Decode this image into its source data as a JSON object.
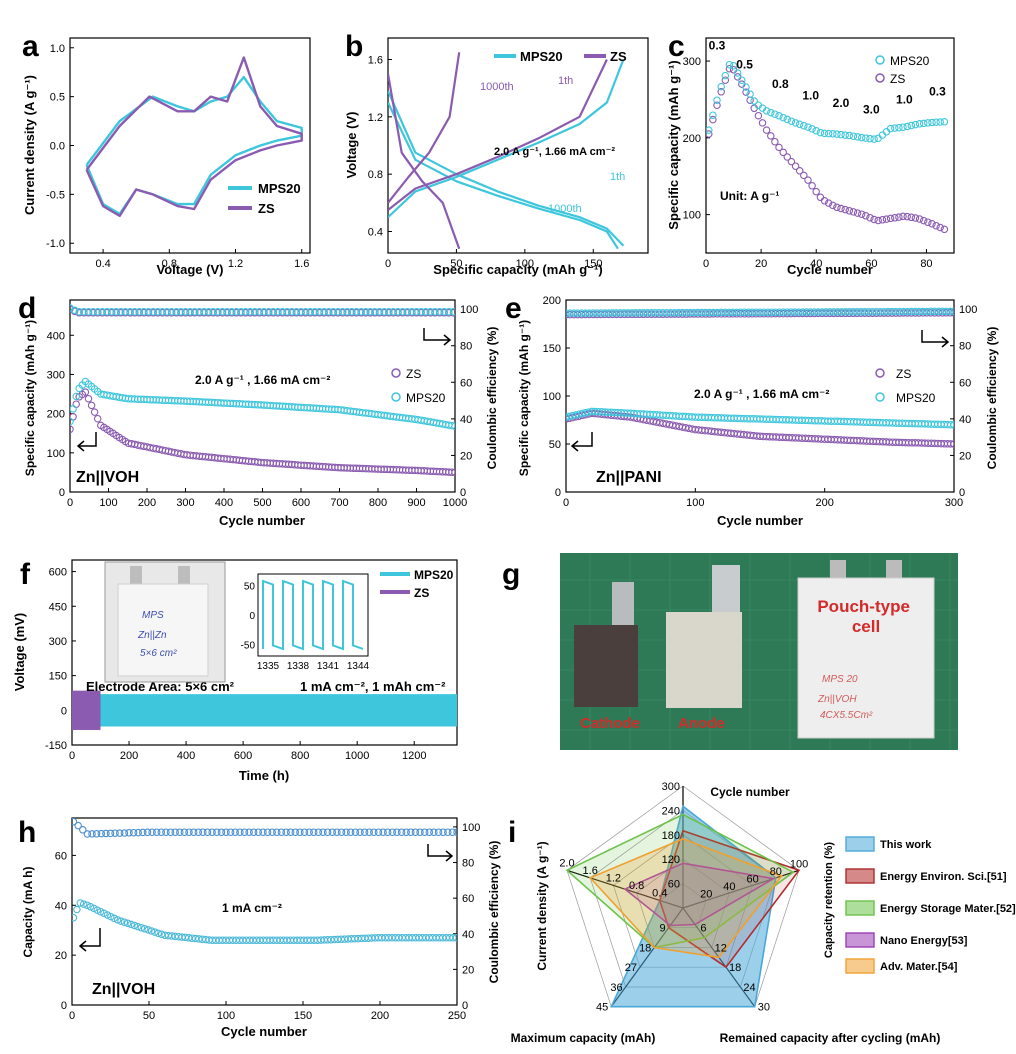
{
  "colors": {
    "mps": "#3ec6dc",
    "zs": "#8a5bb0",
    "zs_dark": "#7a4f9a",
    "photo_bg": "#2e7a56",
    "red": "#d42a2a"
  },
  "panels": {
    "a": "a",
    "b": "b",
    "c": "c",
    "d": "d",
    "e": "e",
    "f": "f",
    "g": "g",
    "h": "h",
    "i": "i"
  },
  "chart_data": [
    {
      "id": "a",
      "type": "line",
      "xlabel": "Voltage (V)",
      "ylabel": "Current density (A g⁻¹)",
      "xlim": [
        0.2,
        1.65
      ],
      "ylim": [
        -1.1,
        1.1
      ],
      "xticks": [
        "0.4",
        "0.8",
        "1.2",
        "1.6"
      ],
      "yticks": [
        "-1.0",
        "-0.5",
        "0.0",
        "0.5",
        "1.0"
      ],
      "legend": [
        "MPS20",
        "ZS"
      ],
      "series": [
        {
          "name": "MPS20",
          "x": [
            0.3,
            0.5,
            0.7,
            0.85,
            0.95,
            1.05,
            1.15,
            1.25,
            1.35,
            1.45,
            1.6,
            1.6,
            1.45,
            1.35,
            1.2,
            1.05,
            0.95,
            0.85,
            0.7,
            0.6,
            0.5,
            0.4,
            0.3
          ],
          "y": [
            -0.2,
            0.25,
            0.5,
            0.4,
            0.35,
            0.45,
            0.5,
            0.7,
            0.45,
            0.25,
            0.18,
            0.1,
            0.05,
            0.0,
            -0.1,
            -0.3,
            -0.6,
            -0.6,
            -0.5,
            -0.45,
            -0.7,
            -0.6,
            -0.2
          ]
        },
        {
          "name": "ZS",
          "x": [
            0.3,
            0.5,
            0.68,
            0.85,
            0.95,
            1.05,
            1.15,
            1.25,
            1.35,
            1.45,
            1.6,
            1.6,
            1.45,
            1.35,
            1.2,
            1.05,
            0.95,
            0.85,
            0.7,
            0.6,
            0.5,
            0.4,
            0.3
          ],
          "y": [
            -0.25,
            0.2,
            0.5,
            0.35,
            0.35,
            0.5,
            0.45,
            0.9,
            0.4,
            0.2,
            0.12,
            0.05,
            0.0,
            -0.05,
            -0.15,
            -0.35,
            -0.65,
            -0.62,
            -0.5,
            -0.45,
            -0.72,
            -0.62,
            -0.25
          ]
        }
      ]
    },
    {
      "id": "b",
      "type": "line",
      "xlabel": "Specific capacity (mAh g⁻¹)",
      "ylabel": "Voltage (V)",
      "xlim": [
        0,
        190
      ],
      "ylim": [
        0.25,
        1.75
      ],
      "xticks": [
        "0",
        "50",
        "100",
        "150"
      ],
      "yticks": [
        "0.4",
        "0.8",
        "1.2",
        "1.6"
      ],
      "legend": [
        "MPS20",
        "ZS"
      ],
      "annotations": [
        "1000th",
        "1th",
        "2.0 A g⁻¹, 1.66 mA cm⁻²",
        "1th",
        "1000th"
      ],
      "series": [
        {
          "name": "MPS20 1th",
          "x": [
            0,
            20,
            50,
            80,
            110,
            140,
            160,
            172
          ],
          "y": [
            1.38,
            0.95,
            0.8,
            0.68,
            0.58,
            0.5,
            0.42,
            0.3
          ]
        },
        {
          "name": "MPS20 1000th",
          "x": [
            0,
            20,
            50,
            80,
            110,
            140,
            160,
            168
          ],
          "y": [
            1.3,
            0.9,
            0.75,
            0.65,
            0.56,
            0.48,
            0.4,
            0.28
          ]
        },
        {
          "name": "MPS20 charge",
          "x": [
            0,
            20,
            50,
            80,
            110,
            140,
            160,
            172
          ],
          "y": [
            0.5,
            0.68,
            0.78,
            0.9,
            1.02,
            1.15,
            1.3,
            1.6
          ]
        },
        {
          "name": "ZS 1th",
          "x": [
            0,
            20,
            50,
            80,
            110,
            140,
            160
          ],
          "y": [
            0.55,
            0.7,
            0.8,
            0.92,
            1.05,
            1.2,
            1.6
          ]
        },
        {
          "name": "ZS 1000th charge",
          "x": [
            0,
            15,
            30,
            45,
            52
          ],
          "y": [
            0.6,
            0.78,
            0.95,
            1.2,
            1.65
          ]
        },
        {
          "name": "ZS 1000th discharge",
          "x": [
            0,
            10,
            25,
            40,
            52
          ],
          "y": [
            1.5,
            0.95,
            0.75,
            0.6,
            0.28
          ]
        }
      ]
    },
    {
      "id": "c",
      "type": "scatter",
      "xlabel": "Cycle number",
      "ylabel": "Specific capacity (mAh g⁻¹)",
      "xlim": [
        0,
        90
      ],
      "ylim": [
        50,
        330
      ],
      "xticks": [
        "0",
        "20",
        "40",
        "60",
        "80"
      ],
      "yticks": [
        "100",
        "200",
        "300"
      ],
      "legend": [
        "MPS20",
        "ZS"
      ],
      "unit_label": "Unit: A g⁻¹",
      "rate_labels": [
        "0.3",
        "0.5",
        "0.8",
        "1.0",
        "2.0",
        "3.0",
        "1.0",
        "0.3"
      ],
      "series": [
        {
          "name": "MPS20",
          "x": [
            1,
            5,
            9,
            13,
            18,
            22,
            27,
            32,
            37,
            42,
            47,
            52,
            57,
            62,
            67,
            72,
            77,
            82,
            87
          ],
          "y": [
            210,
            262,
            300,
            275,
            245,
            235,
            228,
            220,
            214,
            206,
            205,
            203,
            200,
            198,
            212,
            214,
            218,
            220,
            221
          ]
        },
        {
          "name": "ZS",
          "x": [
            1,
            5,
            9,
            13,
            18,
            22,
            27,
            32,
            37,
            42,
            47,
            52,
            57,
            62,
            67,
            72,
            77,
            82,
            87
          ],
          "y": [
            205,
            255,
            295,
            270,
            235,
            210,
            185,
            165,
            145,
            120,
            110,
            105,
            100,
            92,
            95,
            98,
            95,
            88,
            80
          ]
        }
      ]
    },
    {
      "id": "d",
      "type": "scatter",
      "xlabel": "Cycle number",
      "ylabel": "Specific capacity (mAh g⁻¹)",
      "y2label": "Coulombic efficiency (%)",
      "xlim": [
        0,
        1000
      ],
      "ylim": [
        0,
        490
      ],
      "y2lim": [
        0,
        105
      ],
      "xticks": [
        "0",
        "100",
        "200",
        "300",
        "400",
        "500",
        "600",
        "700",
        "800",
        "900",
        "1000"
      ],
      "yticks": [
        "0",
        "100",
        "200",
        "300",
        "400"
      ],
      "y2ticks": [
        "0",
        "20",
        "40",
        "60",
        "80",
        "100"
      ],
      "legend": [
        "ZS",
        "MPS20"
      ],
      "condition": "2.0 A g⁻¹ , 1.66 mA cm⁻²",
      "cell_label": "Zn||VOH",
      "series": [
        {
          "name": "MPS20",
          "x": [
            0,
            20,
            40,
            80,
            150,
            300,
            500,
            700,
            900,
            1000
          ],
          "y": [
            180,
            260,
            282,
            250,
            238,
            232,
            222,
            210,
            185,
            168
          ]
        },
        {
          "name": "ZS",
          "x": [
            0,
            20,
            40,
            80,
            150,
            300,
            500,
            700,
            900,
            1000
          ],
          "y": [
            160,
            240,
            255,
            170,
            125,
            95,
            75,
            62,
            55,
            50
          ]
        },
        {
          "name": "CE",
          "x": [
            0,
            20,
            100,
            500,
            1000
          ],
          "y": [
            100,
            98,
            98,
            98,
            98
          ]
        }
      ]
    },
    {
      "id": "e",
      "type": "scatter",
      "xlabel": "Cycle number",
      "ylabel": "Specific capacity (mAh g⁻¹)",
      "y2label": "Coulombic efficiency (%)",
      "xlim": [
        0,
        300
      ],
      "ylim": [
        0,
        200
      ],
      "y2lim": [
        0,
        105
      ],
      "xticks": [
        "0",
        "100",
        "200",
        "300"
      ],
      "yticks": [
        "0",
        "50",
        "100",
        "150",
        "200"
      ],
      "y2ticks": [
        "0",
        "20",
        "40",
        "60",
        "80",
        "100"
      ],
      "legend": [
        "ZS",
        "MPS20"
      ],
      "condition": "2.0 A g⁻¹ , 1.66 mA cm⁻²",
      "cell_label": "Zn||PANI",
      "series": [
        {
          "name": "MPS20",
          "x": [
            0,
            20,
            50,
            100,
            150,
            200,
            250,
            300
          ],
          "y": [
            78,
            84,
            82,
            78,
            76,
            74,
            72,
            70
          ]
        },
        {
          "name": "ZS",
          "x": [
            0,
            20,
            50,
            100,
            150,
            200,
            250,
            300
          ],
          "y": [
            76,
            82,
            78,
            65,
            58,
            55,
            52,
            50
          ]
        },
        {
          "name": "CE",
          "x": [
            0,
            300
          ],
          "y": [
            97,
            98
          ]
        }
      ]
    },
    {
      "id": "f",
      "type": "line",
      "xlabel": "Time (h)",
      "ylabel": "Voltage (mV)",
      "xlim": [
        0,
        1350
      ],
      "ylim": [
        -150,
        650
      ],
      "xticks": [
        "0",
        "200",
        "400",
        "600",
        "800",
        "1000",
        "1200"
      ],
      "yticks": [
        "-150",
        "0",
        "150",
        "300",
        "450",
        "600"
      ],
      "legend": [
        "MPS20",
        "ZS"
      ],
      "band_mV": [
        -70,
        70
      ],
      "zs_end_h": 100,
      "area_label": "Electrode Area: 5×6 cm²",
      "condition": "1 mA cm⁻², 1 mAh cm⁻²",
      "inset_xticks": [
        "1335",
        "1338",
        "1341",
        "1344"
      ],
      "inset_yticks": [
        "50",
        "0",
        "-50"
      ],
      "photo_text": [
        "MPS",
        "Zn||Zn",
        "5×6 cm²"
      ]
    },
    {
      "id": "h",
      "type": "scatter",
      "xlabel": "Cycle number",
      "ylabel": "Capacity (mA h)",
      "y2label": "Coulombic efficiency (%)",
      "xlim": [
        0,
        250
      ],
      "ylim": [
        0,
        75
      ],
      "y2lim": [
        0,
        105
      ],
      "xticks": [
        "0",
        "50",
        "100",
        "150",
        "200",
        "250"
      ],
      "yticks": [
        "0",
        "20",
        "40",
        "60"
      ],
      "y2ticks": [
        "0",
        "20",
        "40",
        "60",
        "80",
        "100"
      ],
      "condition": "1 mA cm⁻²",
      "cell_label": "Zn||VOH",
      "series": [
        {
          "name": "Capacity",
          "x": [
            1,
            5,
            10,
            30,
            60,
            90,
            120,
            160,
            200,
            250
          ],
          "y": [
            35,
            41,
            40,
            34,
            28,
            26,
            26,
            26,
            27,
            27
          ]
        },
        {
          "name": "CE",
          "x": [
            1,
            5,
            10,
            50,
            150,
            250
          ],
          "y": [
            103,
            100,
            96,
            97,
            97,
            97
          ]
        }
      ]
    },
    {
      "id": "i",
      "type": "radar",
      "axes": [
        "Cycle number",
        "Capacity retention (%)",
        "Remained capacity  after cycling (mAh)",
        "Maximum capacity (mAh)",
        "Current density (A g⁻¹)"
      ],
      "axis_max": [
        300,
        100,
        30,
        45,
        2.0
      ],
      "tick_labels": [
        [
          "60",
          "120",
          "180",
          "240",
          "300"
        ],
        [
          "20",
          "40",
          "60",
          "80",
          "100"
        ],
        [
          "6",
          "12",
          "18",
          "24",
          "30"
        ],
        [
          "9",
          "18",
          "27",
          "36",
          "45"
        ],
        [
          "0.4",
          "0.8",
          "1.2",
          "1.6",
          "2.0"
        ]
      ],
      "series": [
        {
          "name": "This work",
          "values": [
            250,
            80,
            30,
            45,
            0.4
          ],
          "color": "#4aa8d8"
        },
        {
          "name": "Energy Environ. Sci.[51]",
          "values": [
            190,
            100,
            18,
            9,
            0.4
          ],
          "color": "#b22a2a"
        },
        {
          "name": "Energy Storage Mater.[52]",
          "values": [
            230,
            95,
            9,
            18,
            2.0
          ],
          "color": "#6cc24a"
        },
        {
          "name": "Nano Energy[53]",
          "values": [
            110,
            78,
            5,
            8,
            1.0
          ],
          "color": "#9b3fb5"
        },
        {
          "name": "Adv. Mater.[54]",
          "values": [
            170,
            85,
            15,
            18,
            1.6
          ],
          "color": "#f0a030"
        }
      ]
    }
  ],
  "photo_g": {
    "labels": [
      "Cathode",
      "Anode"
    ],
    "cell_title": "Pouch-type\ncell",
    "bag_text": [
      "MPS 20",
      "Zn||VOH",
      "4CX5.5Cm²"
    ]
  }
}
